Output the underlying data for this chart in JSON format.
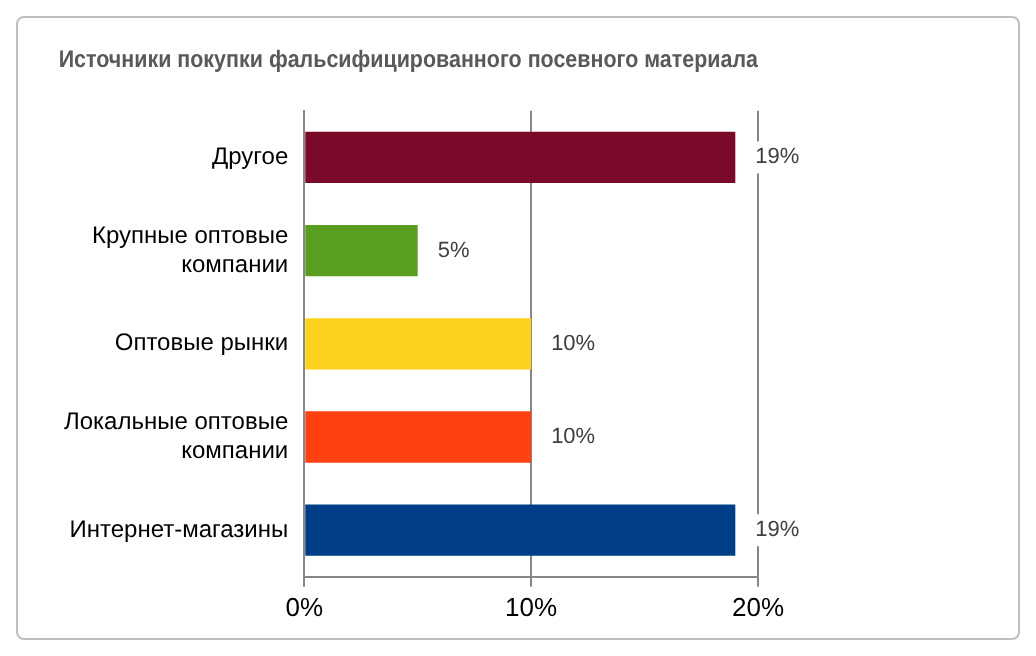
{
  "chart_data": {
    "type": "bar",
    "orientation": "horizontal",
    "title": "Источники покупки фальсифицированного посевного материала",
    "categories": [
      "Другое",
      "Крупные оптовые компании",
      "Оптовые рынки",
      "Локальные оптовые компании",
      "Интернет-магазины"
    ],
    "values": [
      19,
      5,
      10,
      10,
      19
    ],
    "colors": [
      "#7b0a2a",
      "#5a9e1f",
      "#ffd21f",
      "#ff4010",
      "#003f87"
    ],
    "value_labels": [
      "19%",
      "5%",
      "10%",
      "10%",
      "19%"
    ],
    "xlim": [
      0,
      20
    ],
    "xticks": [
      {
        "value": 0,
        "label": "0%"
      },
      {
        "value": 10,
        "label": "10%"
      },
      {
        "value": 20,
        "label": "20%"
      }
    ],
    "grid": "x",
    "legend": false
  }
}
